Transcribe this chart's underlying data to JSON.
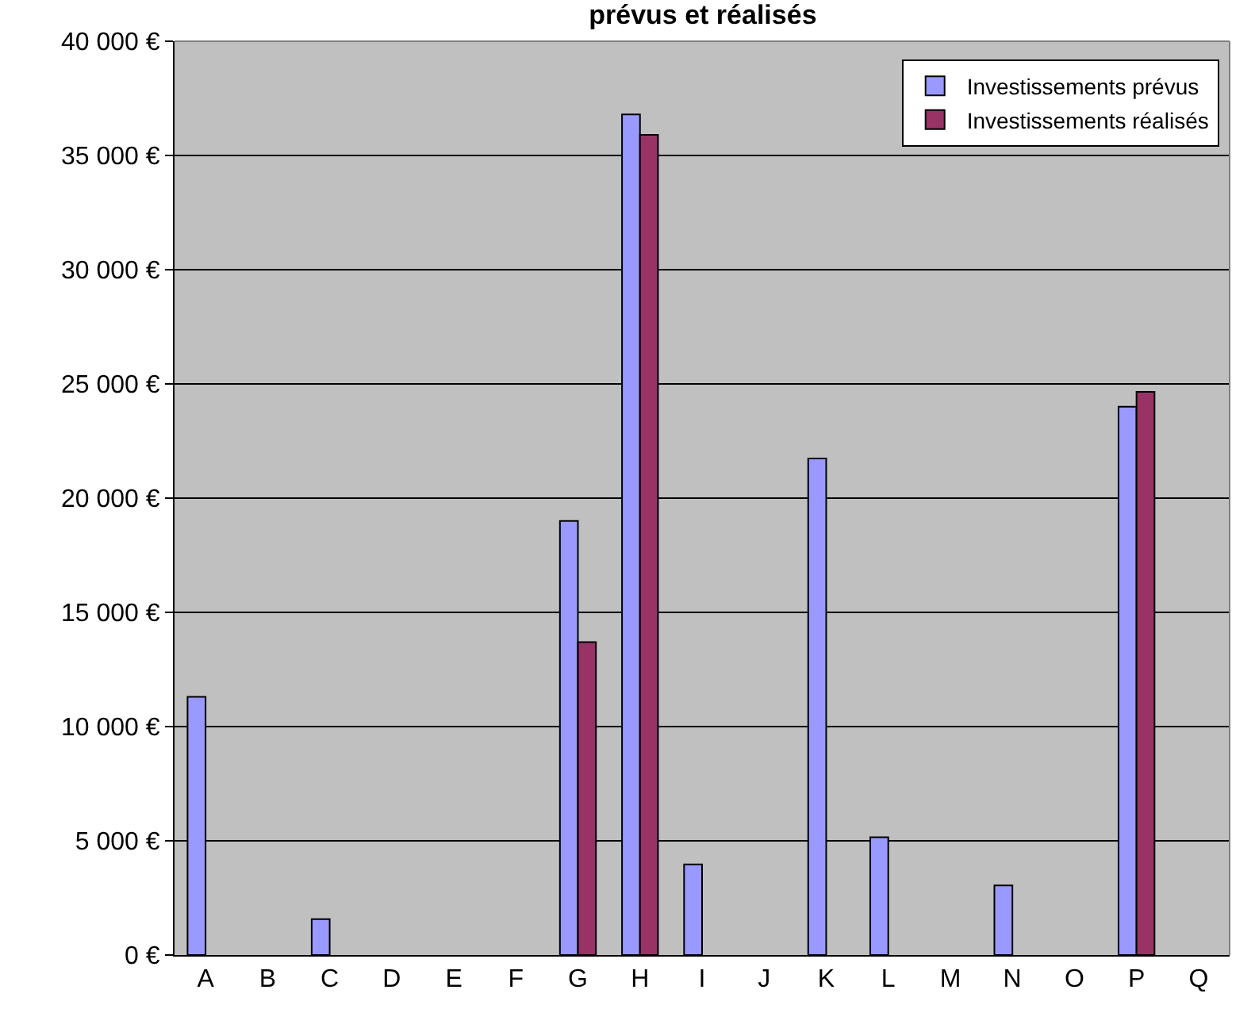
{
  "chart_data": {
    "type": "bar",
    "title": "prévus et réalisés",
    "categories": [
      "A",
      "B",
      "C",
      "D",
      "E",
      "F",
      "G",
      "H",
      "I",
      "J",
      "K",
      "L",
      "M",
      "N",
      "O",
      "P",
      "Q"
    ],
    "series": [
      {
        "name": "Investissements prévus",
        "color": "#9999ff",
        "values": [
          11300,
          null,
          1570,
          null,
          null,
          null,
          19000,
          36800,
          3970,
          null,
          21740,
          5160,
          null,
          3050,
          null,
          24000,
          null
        ]
      },
      {
        "name": "Investissements réalisés",
        "color": "#993366",
        "values": [
          null,
          null,
          null,
          null,
          null,
          null,
          13700,
          35900,
          null,
          null,
          null,
          null,
          null,
          null,
          null,
          24650,
          null
        ]
      }
    ],
    "ylim": [
      0,
      40000
    ],
    "yticks": [
      {
        "value": 0,
        "label": "0 €"
      },
      {
        "value": 5000,
        "label": "5 000 €"
      },
      {
        "value": 10000,
        "label": "10 000 €"
      },
      {
        "value": 15000,
        "label": "15 000 €"
      },
      {
        "value": 20000,
        "label": "20 000 €"
      },
      {
        "value": 25000,
        "label": "25 000 €"
      },
      {
        "value": 30000,
        "label": "30 000 €"
      },
      {
        "value": 35000,
        "label": "35 000 €"
      },
      {
        "value": 40000,
        "label": "40 000 €"
      }
    ],
    "grid": "y",
    "legend": "top right"
  }
}
